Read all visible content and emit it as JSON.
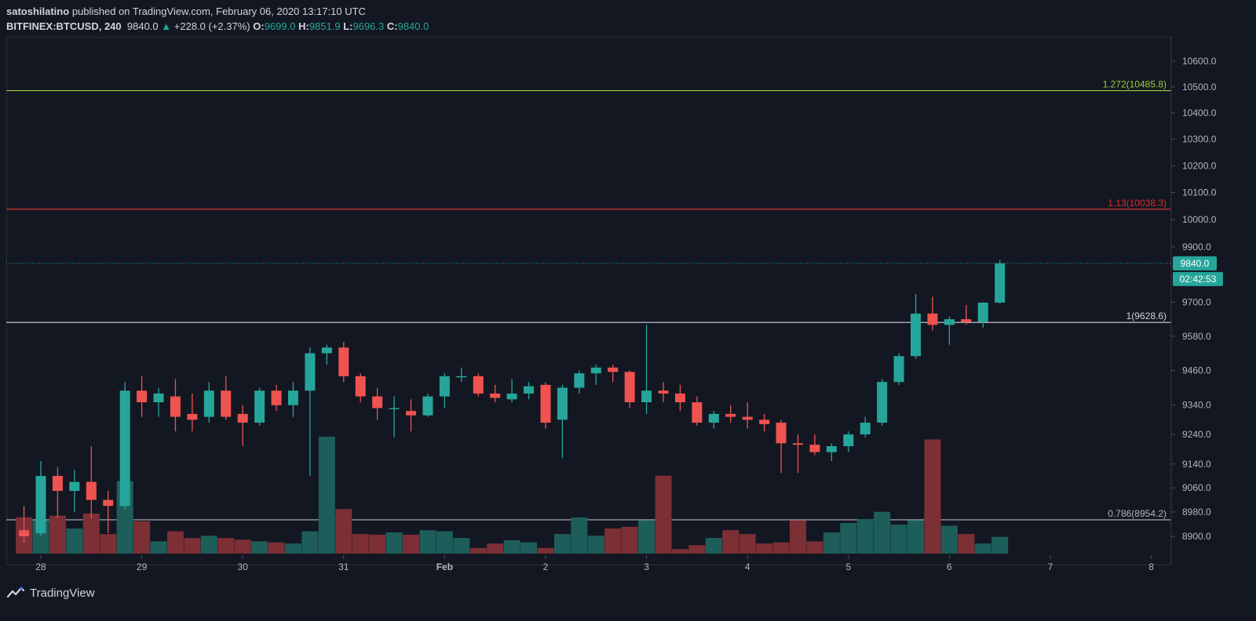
{
  "header": {
    "author": "satoshilatino",
    "published_text": "published on TradingView.com, February 06, 2020 13:17:10 UTC",
    "symbol": "BITFINEX:BTCUSD, 240",
    "last": "9840.0",
    "change": "+228.0 (+2.37%)",
    "o_label": "O:",
    "o_value": "9699.0",
    "h_label": "H:",
    "h_value": "9851.9",
    "l_label": "L:",
    "l_value": "9696.3",
    "c_label": "C:",
    "c_value": "9840.0"
  },
  "footer": {
    "brand": "TradingView"
  },
  "price_tags": {
    "last": "9840.0",
    "countdown": "02:42:53"
  },
  "colors": {
    "background": "#131722",
    "up": "#26a69a",
    "down": "#ef5350",
    "up_volume": "#1e5e5a",
    "down_volume": "#7c2f35",
    "fib_1272": "#9ccc39",
    "fib_113": "#d32f2f",
    "fib_1": "#d1d4dc",
    "fib_0786": "#b2b5be"
  },
  "chart_data": {
    "type": "candlestick",
    "title": "BITFINEX:BTCUSD, 240",
    "x_tick_labels": [
      "28",
      "29",
      "30",
      "31",
      "Feb",
      "2",
      "3",
      "4",
      "5",
      "6",
      "7",
      "8"
    ],
    "y_tick_labels": [
      "8900.0",
      "8980.0",
      "9060.0",
      "9140.0",
      "9240.0",
      "9340.0",
      "9460.0",
      "9580.0",
      "9700.0",
      "9900.0",
      "10000.0",
      "10100.0",
      "10200.0",
      "10300.0",
      "10400.0",
      "10500.0",
      "10600.0"
    ],
    "y_scale": "log",
    "ylim": [
      8860,
      10680
    ],
    "grid": false,
    "levels": [
      {
        "label": "1.272(10485.8)",
        "value": 10485.8,
        "color": "#9ccc39"
      },
      {
        "label": "1.13(10038.3)",
        "value": 10038.3,
        "color": "#d32f2f"
      },
      {
        "label": "1(9628.6)",
        "value": 9628.6,
        "color": "#d1d4dc"
      },
      {
        "label": "0.786(8954.2)",
        "value": 8954.2,
        "color": "#b2b5be"
      }
    ],
    "last_price": 9840.0,
    "candles": [
      {
        "date": "2020-01-27 20:00",
        "open": 8920,
        "high": 9000,
        "low": 8880,
        "close": 8900,
        "volume": 65
      },
      {
        "date": "2020-01-28 00:00",
        "open": 8910,
        "high": 9150,
        "low": 8900,
        "close": 9100,
        "volume": 60
      },
      {
        "date": "2020-01-28 04:00",
        "open": 9100,
        "high": 9130,
        "low": 8960,
        "close": 9050,
        "volume": 68
      },
      {
        "date": "2020-01-28 08:00",
        "open": 9050,
        "high": 9120,
        "low": 8980,
        "close": 9080,
        "volume": 45
      },
      {
        "date": "2020-01-28 12:00",
        "open": 9080,
        "high": 9200,
        "low": 8960,
        "close": 9020,
        "volume": 72
      },
      {
        "date": "2020-01-28 16:00",
        "open": 9020,
        "high": 9050,
        "low": 8910,
        "close": 9000,
        "volume": 35
      },
      {
        "date": "2020-01-28 20:00",
        "open": 9000,
        "high": 9420,
        "low": 8990,
        "close": 9390,
        "volume": 130
      },
      {
        "date": "2020-01-29 00:00",
        "open": 9390,
        "high": 9440,
        "low": 9300,
        "close": 9350,
        "volume": 58
      },
      {
        "date": "2020-01-29 04:00",
        "open": 9350,
        "high": 9400,
        "low": 9300,
        "close": 9380,
        "volume": 22
      },
      {
        "date": "2020-01-29 08:00",
        "open": 9370,
        "high": 9430,
        "low": 9250,
        "close": 9300,
        "volume": 40
      },
      {
        "date": "2020-01-29 12:00",
        "open": 9310,
        "high": 9380,
        "low": 9250,
        "close": 9290,
        "volume": 28
      },
      {
        "date": "2020-01-29 16:00",
        "open": 9300,
        "high": 9420,
        "low": 9280,
        "close": 9390,
        "volume": 32
      },
      {
        "date": "2020-01-29 20:00",
        "open": 9390,
        "high": 9440,
        "low": 9290,
        "close": 9300,
        "volume": 28
      },
      {
        "date": "2020-01-30 00:00",
        "open": 9310,
        "high": 9340,
        "low": 9200,
        "close": 9280,
        "volume": 25
      },
      {
        "date": "2020-01-30 04:00",
        "open": 9280,
        "high": 9400,
        "low": 9270,
        "close": 9390,
        "volume": 22
      },
      {
        "date": "2020-01-30 08:00",
        "open": 9390,
        "high": 9410,
        "low": 9320,
        "close": 9340,
        "volume": 20
      },
      {
        "date": "2020-01-30 12:00",
        "open": 9340,
        "high": 9420,
        "low": 9300,
        "close": 9390,
        "volume": 18
      },
      {
        "date": "2020-01-30 16:00",
        "open": 9390,
        "high": 9540,
        "low": 9100,
        "close": 9520,
        "volume": 40
      },
      {
        "date": "2020-01-30 20:00",
        "open": 9520,
        "high": 9550,
        "low": 9480,
        "close": 9540,
        "volume": 210
      },
      {
        "date": "2020-01-31 00:00",
        "open": 9540,
        "high": 9560,
        "low": 9420,
        "close": 9440,
        "volume": 80
      },
      {
        "date": "2020-01-31 04:00",
        "open": 9440,
        "high": 9450,
        "low": 9350,
        "close": 9370,
        "volume": 35
      },
      {
        "date": "2020-01-31 08:00",
        "open": 9370,
        "high": 9400,
        "low": 9290,
        "close": 9330,
        "volume": 34
      },
      {
        "date": "2020-01-31 12:00",
        "open": 9330,
        "high": 9370,
        "low": 9230,
        "close": 9330,
        "volume": 38
      },
      {
        "date": "2020-01-31 16:00",
        "open": 9320,
        "high": 9360,
        "low": 9250,
        "close": 9305,
        "volume": 34
      },
      {
        "date": "2020-01-31 20:00",
        "open": 9305,
        "high": 9380,
        "low": 9300,
        "close": 9370,
        "volume": 42
      },
      {
        "date": "2020-02-01 00:00",
        "open": 9370,
        "high": 9450,
        "low": 9330,
        "close": 9440,
        "volume": 40
      },
      {
        "date": "2020-02-01 04:00",
        "open": 9440,
        "high": 9470,
        "low": 9420,
        "close": 9440,
        "volume": 28
      },
      {
        "date": "2020-02-01 08:00",
        "open": 9440,
        "high": 9450,
        "low": 9370,
        "close": 9380,
        "volume": 10
      },
      {
        "date": "2020-02-01 12:00",
        "open": 9380,
        "high": 9410,
        "low": 9350,
        "close": 9365,
        "volume": 18
      },
      {
        "date": "2020-02-01 16:00",
        "open": 9360,
        "high": 9430,
        "low": 9350,
        "close": 9380,
        "volume": 24
      },
      {
        "date": "2020-02-01 20:00",
        "open": 9380,
        "high": 9420,
        "low": 9360,
        "close": 9405,
        "volume": 20
      },
      {
        "date": "2020-02-02 00:00",
        "open": 9410,
        "high": 9420,
        "low": 9260,
        "close": 9280,
        "volume": 10
      },
      {
        "date": "2020-02-02 04:00",
        "open": 9290,
        "high": 9410,
        "low": 9160,
        "close": 9400,
        "volume": 35
      },
      {
        "date": "2020-02-02 08:00",
        "open": 9400,
        "high": 9460,
        "low": 9380,
        "close": 9450,
        "volume": 65
      },
      {
        "date": "2020-02-02 12:00",
        "open": 9450,
        "high": 9480,
        "low": 9410,
        "close": 9470,
        "volume": 32
      },
      {
        "date": "2020-02-02 16:00",
        "open": 9470,
        "high": 9480,
        "low": 9420,
        "close": 9455,
        "volume": 45
      },
      {
        "date": "2020-02-02 20:00",
        "open": 9455,
        "high": 9460,
        "low": 9330,
        "close": 9350,
        "volume": 48
      },
      {
        "date": "2020-02-03 00:00",
        "open": 9350,
        "high": 9620,
        "low": 9310,
        "close": 9390,
        "volume": 60
      },
      {
        "date": "2020-02-03 04:00",
        "open": 9390,
        "high": 9420,
        "low": 9350,
        "close": 9380,
        "volume": 140
      },
      {
        "date": "2020-02-03 08:00",
        "open": 9380,
        "high": 9410,
        "low": 9320,
        "close": 9350,
        "volume": 8
      },
      {
        "date": "2020-02-03 12:00",
        "open": 9350,
        "high": 9370,
        "low": 9270,
        "close": 9280,
        "volume": 15
      },
      {
        "date": "2020-02-03 16:00",
        "open": 9280,
        "high": 9320,
        "low": 9260,
        "close": 9310,
        "volume": 28
      },
      {
        "date": "2020-02-03 20:00",
        "open": 9310,
        "high": 9340,
        "low": 9280,
        "close": 9300,
        "volume": 42
      },
      {
        "date": "2020-02-04 00:00",
        "open": 9300,
        "high": 9350,
        "low": 9260,
        "close": 9290,
        "volume": 35
      },
      {
        "date": "2020-02-04 04:00",
        "open": 9290,
        "high": 9310,
        "low": 9250,
        "close": 9275,
        "volume": 18
      },
      {
        "date": "2020-02-04 08:00",
        "open": 9280,
        "high": 9290,
        "low": 9110,
        "close": 9210,
        "volume": 20
      },
      {
        "date": "2020-02-04 12:00",
        "open": 9210,
        "high": 9240,
        "low": 9110,
        "close": 9205,
        "volume": 60
      },
      {
        "date": "2020-02-04 16:00",
        "open": 9205,
        "high": 9240,
        "low": 9170,
        "close": 9180,
        "volume": 22
      },
      {
        "date": "2020-02-04 20:00",
        "open": 9180,
        "high": 9210,
        "low": 9150,
        "close": 9200,
        "volume": 38
      },
      {
        "date": "2020-02-05 00:00",
        "open": 9200,
        "high": 9250,
        "low": 9180,
        "close": 9240,
        "volume": 55
      },
      {
        "date": "2020-02-05 04:00",
        "open": 9240,
        "high": 9300,
        "low": 9230,
        "close": 9280,
        "volume": 62
      },
      {
        "date": "2020-02-05 08:00",
        "open": 9280,
        "high": 9430,
        "low": 9270,
        "close": 9420,
        "volume": 75
      },
      {
        "date": "2020-02-05 12:00",
        "open": 9420,
        "high": 9520,
        "low": 9410,
        "close": 9510,
        "volume": 52
      },
      {
        "date": "2020-02-05 16:00",
        "open": 9510,
        "high": 9730,
        "low": 9500,
        "close": 9660,
        "volume": 60
      },
      {
        "date": "2020-02-05 20:00",
        "open": 9660,
        "high": 9720,
        "low": 9600,
        "close": 9620,
        "volume": 205
      },
      {
        "date": "2020-02-06 00:00",
        "open": 9620,
        "high": 9650,
        "low": 9550,
        "close": 9640,
        "volume": 50
      },
      {
        "date": "2020-02-06 04:00",
        "open": 9640,
        "high": 9690,
        "low": 9620,
        "close": 9630,
        "volume": 35
      },
      {
        "date": "2020-02-06 08:00",
        "open": 9630,
        "high": 9700,
        "low": 9610,
        "close": 9699,
        "volume": 18
      },
      {
        "date": "2020-02-06 12:00",
        "open": 9699,
        "high": 9851.9,
        "low": 9696.3,
        "close": 9840,
        "volume": 30
      }
    ]
  }
}
